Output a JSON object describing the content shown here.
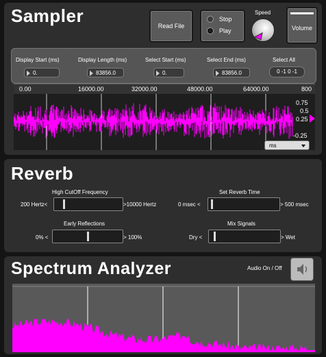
{
  "sampler": {
    "title": "Sampler",
    "read_file_label": "Read File",
    "transport": {
      "stop_label": "Stop",
      "play_label": "Play",
      "selected": "Play"
    },
    "speed_label": "Speed",
    "volume_label": "Volume",
    "controls": [
      {
        "label": "Display Start (ms)",
        "value": "0."
      },
      {
        "label": "Display Length (ms)",
        "value": "83856.0"
      },
      {
        "label": "Select Start (ms)",
        "value": "0."
      },
      {
        "label": "Select End (ms)",
        "value": "83856.0"
      }
    ],
    "select_all_label": "Select All",
    "select_all_value": "0 -1 0 -1",
    "waveform": {
      "ruler_labels": [
        "0.00",
        "16000.00",
        "32000.00",
        "48000.00",
        "64000.00",
        "800"
      ],
      "amp_labels": [
        "0.75",
        "0.5",
        "0.25",
        "-0.25"
      ],
      "unit_value": "ms",
      "wave_color": "#ff00ff"
    }
  },
  "reverb": {
    "title": "Reverb",
    "high_cutoff": {
      "label": "High CutOff Frequency",
      "min": "200 Hertz<",
      "max": ">10000 Hertz",
      "level": 0.12
    },
    "reverb_time": {
      "label": "Set Reverb Time",
      "min": "0 msec <",
      "max": "> 500 msec",
      "level": 0.02
    },
    "early_reflections": {
      "label": "Early Reflections",
      "min": "0% <",
      "max": "> 100%",
      "level": 0.5
    },
    "mix": {
      "label": "Mix Signals",
      "min": "Dry <",
      "max": "> Wet",
      "level": 0.05
    }
  },
  "spectrum": {
    "title": "Spectrum Analyzer",
    "audio_label": "Audio On / Off",
    "fill_color": "#ff00ff"
  }
}
